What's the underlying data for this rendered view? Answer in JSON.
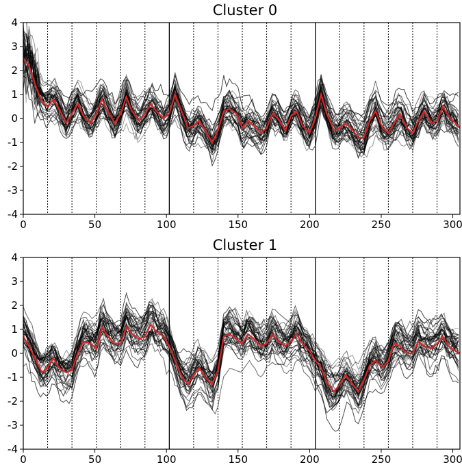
{
  "chart_data": [
    {
      "type": "line",
      "title": "Cluster 0",
      "xlabel": "",
      "ylabel": "",
      "xlim": [
        0,
        305
      ],
      "ylim": [
        -4,
        4
      ],
      "xticks": [
        0,
        50,
        100,
        150,
        200,
        250,
        300
      ],
      "yticks": [
        -4,
        -3,
        -2,
        -1,
        0,
        1,
        2,
        3,
        4
      ],
      "grid": false,
      "segment_boundaries_dotted": [
        17,
        34,
        51,
        68,
        85,
        119,
        136,
        153,
        170,
        187,
        221,
        238,
        255,
        272,
        289
      ],
      "block_boundaries_solid": [
        102,
        204
      ],
      "colors": {
        "mean": "#d62728",
        "individual": "#000000"
      },
      "individual_series": {
        "count": 40,
        "opacity": "mixed gray/black",
        "spread_sd": 0.55
      },
      "series": [
        {
          "name": "cluster mean",
          "x": [
            0,
            4,
            9,
            13,
            17,
            21,
            25,
            30,
            34,
            38,
            42,
            47,
            51,
            55,
            59,
            64,
            68,
            72,
            76,
            81,
            85,
            89,
            93,
            98,
            102,
            106,
            110,
            115,
            119,
            123,
            127,
            132,
            136,
            140,
            144,
            149,
            153,
            157,
            161,
            166,
            170,
            174,
            178,
            183,
            187,
            191,
            195,
            200,
            204,
            208,
            212,
            217,
            221,
            225,
            229,
            234,
            238,
            242,
            246,
            251,
            255,
            259,
            263,
            268,
            272,
            276,
            280,
            285,
            289,
            293,
            297,
            302,
            305
          ],
          "y": [
            2.5,
            2.2,
            1.3,
            0.7,
            0.5,
            0.8,
            0.4,
            -0.2,
            0.2,
            0.6,
            0.1,
            -0.2,
            0.2,
            0.8,
            0.3,
            -0.2,
            0.2,
            0.9,
            0.3,
            -0.1,
            0.2,
            0.6,
            0.3,
            0.0,
            0.2,
            1.0,
            0.4,
            -0.4,
            -0.3,
            -0.1,
            -0.5,
            -1.0,
            -0.5,
            0.3,
            0.4,
            0.2,
            -0.4,
            -0.1,
            -0.3,
            -0.6,
            -0.4,
            0.2,
            0.0,
            -0.5,
            0.1,
            0.3,
            -0.3,
            -0.6,
            0.0,
            1.0,
            0.2,
            -0.5,
            -0.4,
            -0.2,
            -0.4,
            -0.8,
            -0.8,
            -0.1,
            0.3,
            -0.4,
            -0.6,
            -0.2,
            0.2,
            -0.4,
            -0.6,
            -0.1,
            0.3,
            -0.2,
            -0.1,
            0.5,
            0.1,
            -0.2,
            -0.4
          ]
        }
      ]
    },
    {
      "type": "line",
      "title": "Cluster 1",
      "xlabel": "",
      "ylabel": "",
      "xlim": [
        0,
        305
      ],
      "ylim": [
        -4,
        4
      ],
      "xticks": [
        0,
        50,
        100,
        150,
        200,
        250,
        300
      ],
      "yticks": [
        -4,
        -3,
        -2,
        -1,
        0,
        1,
        2,
        3,
        4
      ],
      "grid": false,
      "segment_boundaries_dotted": [
        17,
        34,
        51,
        68,
        85,
        119,
        136,
        153,
        170,
        187,
        221,
        238,
        255,
        272,
        289
      ],
      "block_boundaries_solid": [
        102,
        204
      ],
      "colors": {
        "mean": "#d62728",
        "individual": "#000000"
      },
      "individual_series": {
        "count": 40,
        "opacity": "mixed gray/black",
        "spread_sd": 0.55
      },
      "series": [
        {
          "name": "cluster mean",
          "x": [
            0,
            4,
            9,
            13,
            17,
            21,
            25,
            30,
            34,
            38,
            42,
            47,
            51,
            55,
            59,
            64,
            68,
            72,
            76,
            81,
            85,
            89,
            93,
            98,
            102,
            106,
            110,
            115,
            119,
            123,
            127,
            132,
            136,
            140,
            144,
            149,
            153,
            157,
            161,
            166,
            170,
            174,
            178,
            183,
            187,
            191,
            195,
            200,
            204,
            208,
            212,
            217,
            221,
            225,
            229,
            234,
            238,
            242,
            246,
            251,
            255,
            259,
            263,
            268,
            272,
            276,
            280,
            285,
            289,
            293,
            297,
            302,
            305
          ],
          "y": [
            0.7,
            0.3,
            -0.3,
            -0.8,
            -0.6,
            -0.2,
            -0.6,
            -0.8,
            -0.7,
            0.0,
            0.5,
            0.4,
            0.2,
            1.1,
            0.7,
            0.4,
            0.4,
            1.1,
            0.8,
            0.6,
            0.7,
            1.2,
            0.9,
            0.7,
            0.3,
            -0.3,
            -0.9,
            -1.3,
            -0.9,
            -0.6,
            -1.0,
            -1.3,
            -0.7,
            0.7,
            0.8,
            0.6,
            0.4,
            0.8,
            0.6,
            0.3,
            0.4,
            0.8,
            0.5,
            0.3,
            0.5,
            0.8,
            0.4,
            0.1,
            -0.3,
            -0.6,
            -1.2,
            -1.6,
            -1.3,
            -0.9,
            -1.2,
            -1.6,
            -1.1,
            -0.5,
            -0.3,
            -0.6,
            -0.3,
            0.4,
            0.3,
            0.0,
            0.0,
            0.5,
            0.3,
            0.2,
            0.4,
            0.7,
            0.3,
            0.1,
            0.0
          ]
        }
      ]
    }
  ]
}
